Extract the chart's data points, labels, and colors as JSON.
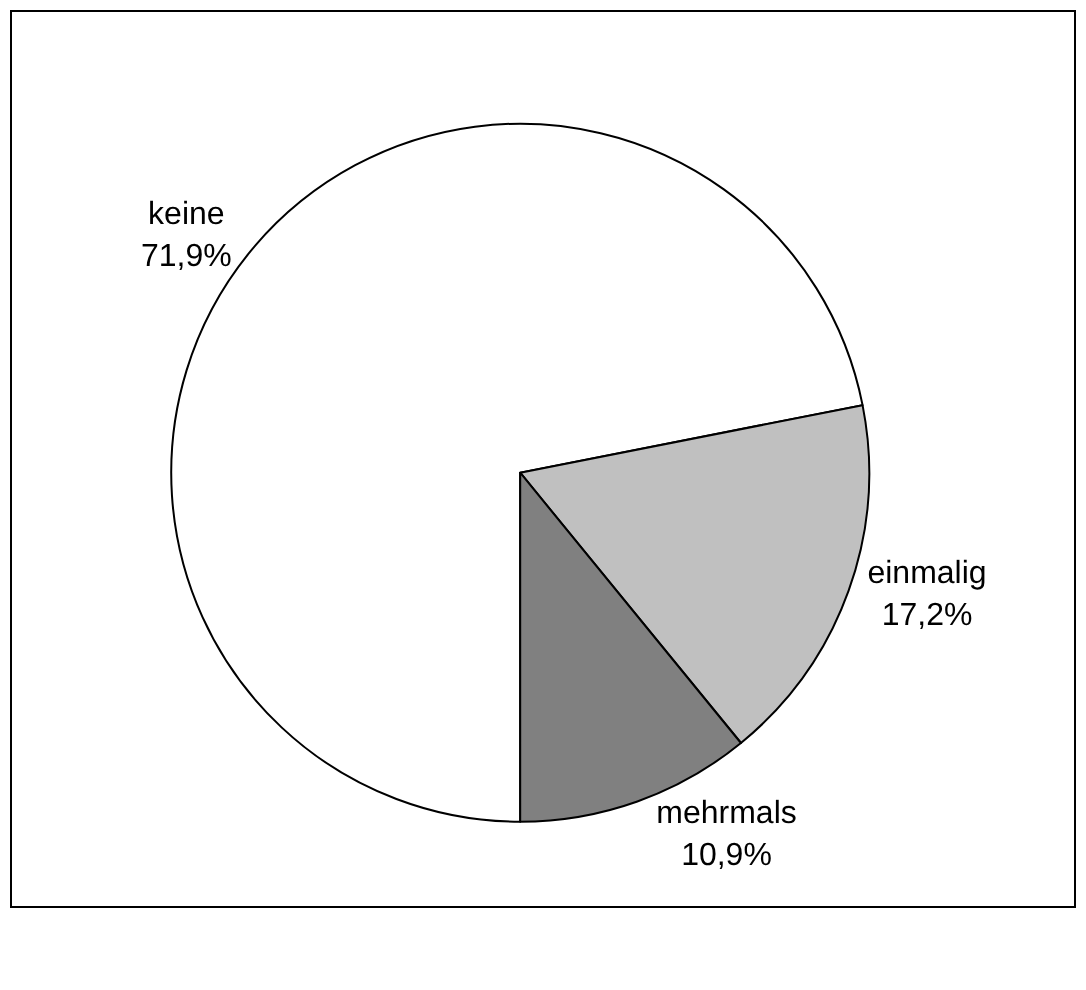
{
  "chart_data": {
    "type": "pie",
    "categories": [
      "keine",
      "einmalig",
      "mehrmals"
    ],
    "values": [
      71.9,
      17.2,
      10.9
    ],
    "value_labels": [
      "71,9%",
      "17,2%",
      "10,9%"
    ],
    "colors": [
      "#ffffff",
      "#c0c0c0",
      "#808080"
    ],
    "legend": false
  }
}
